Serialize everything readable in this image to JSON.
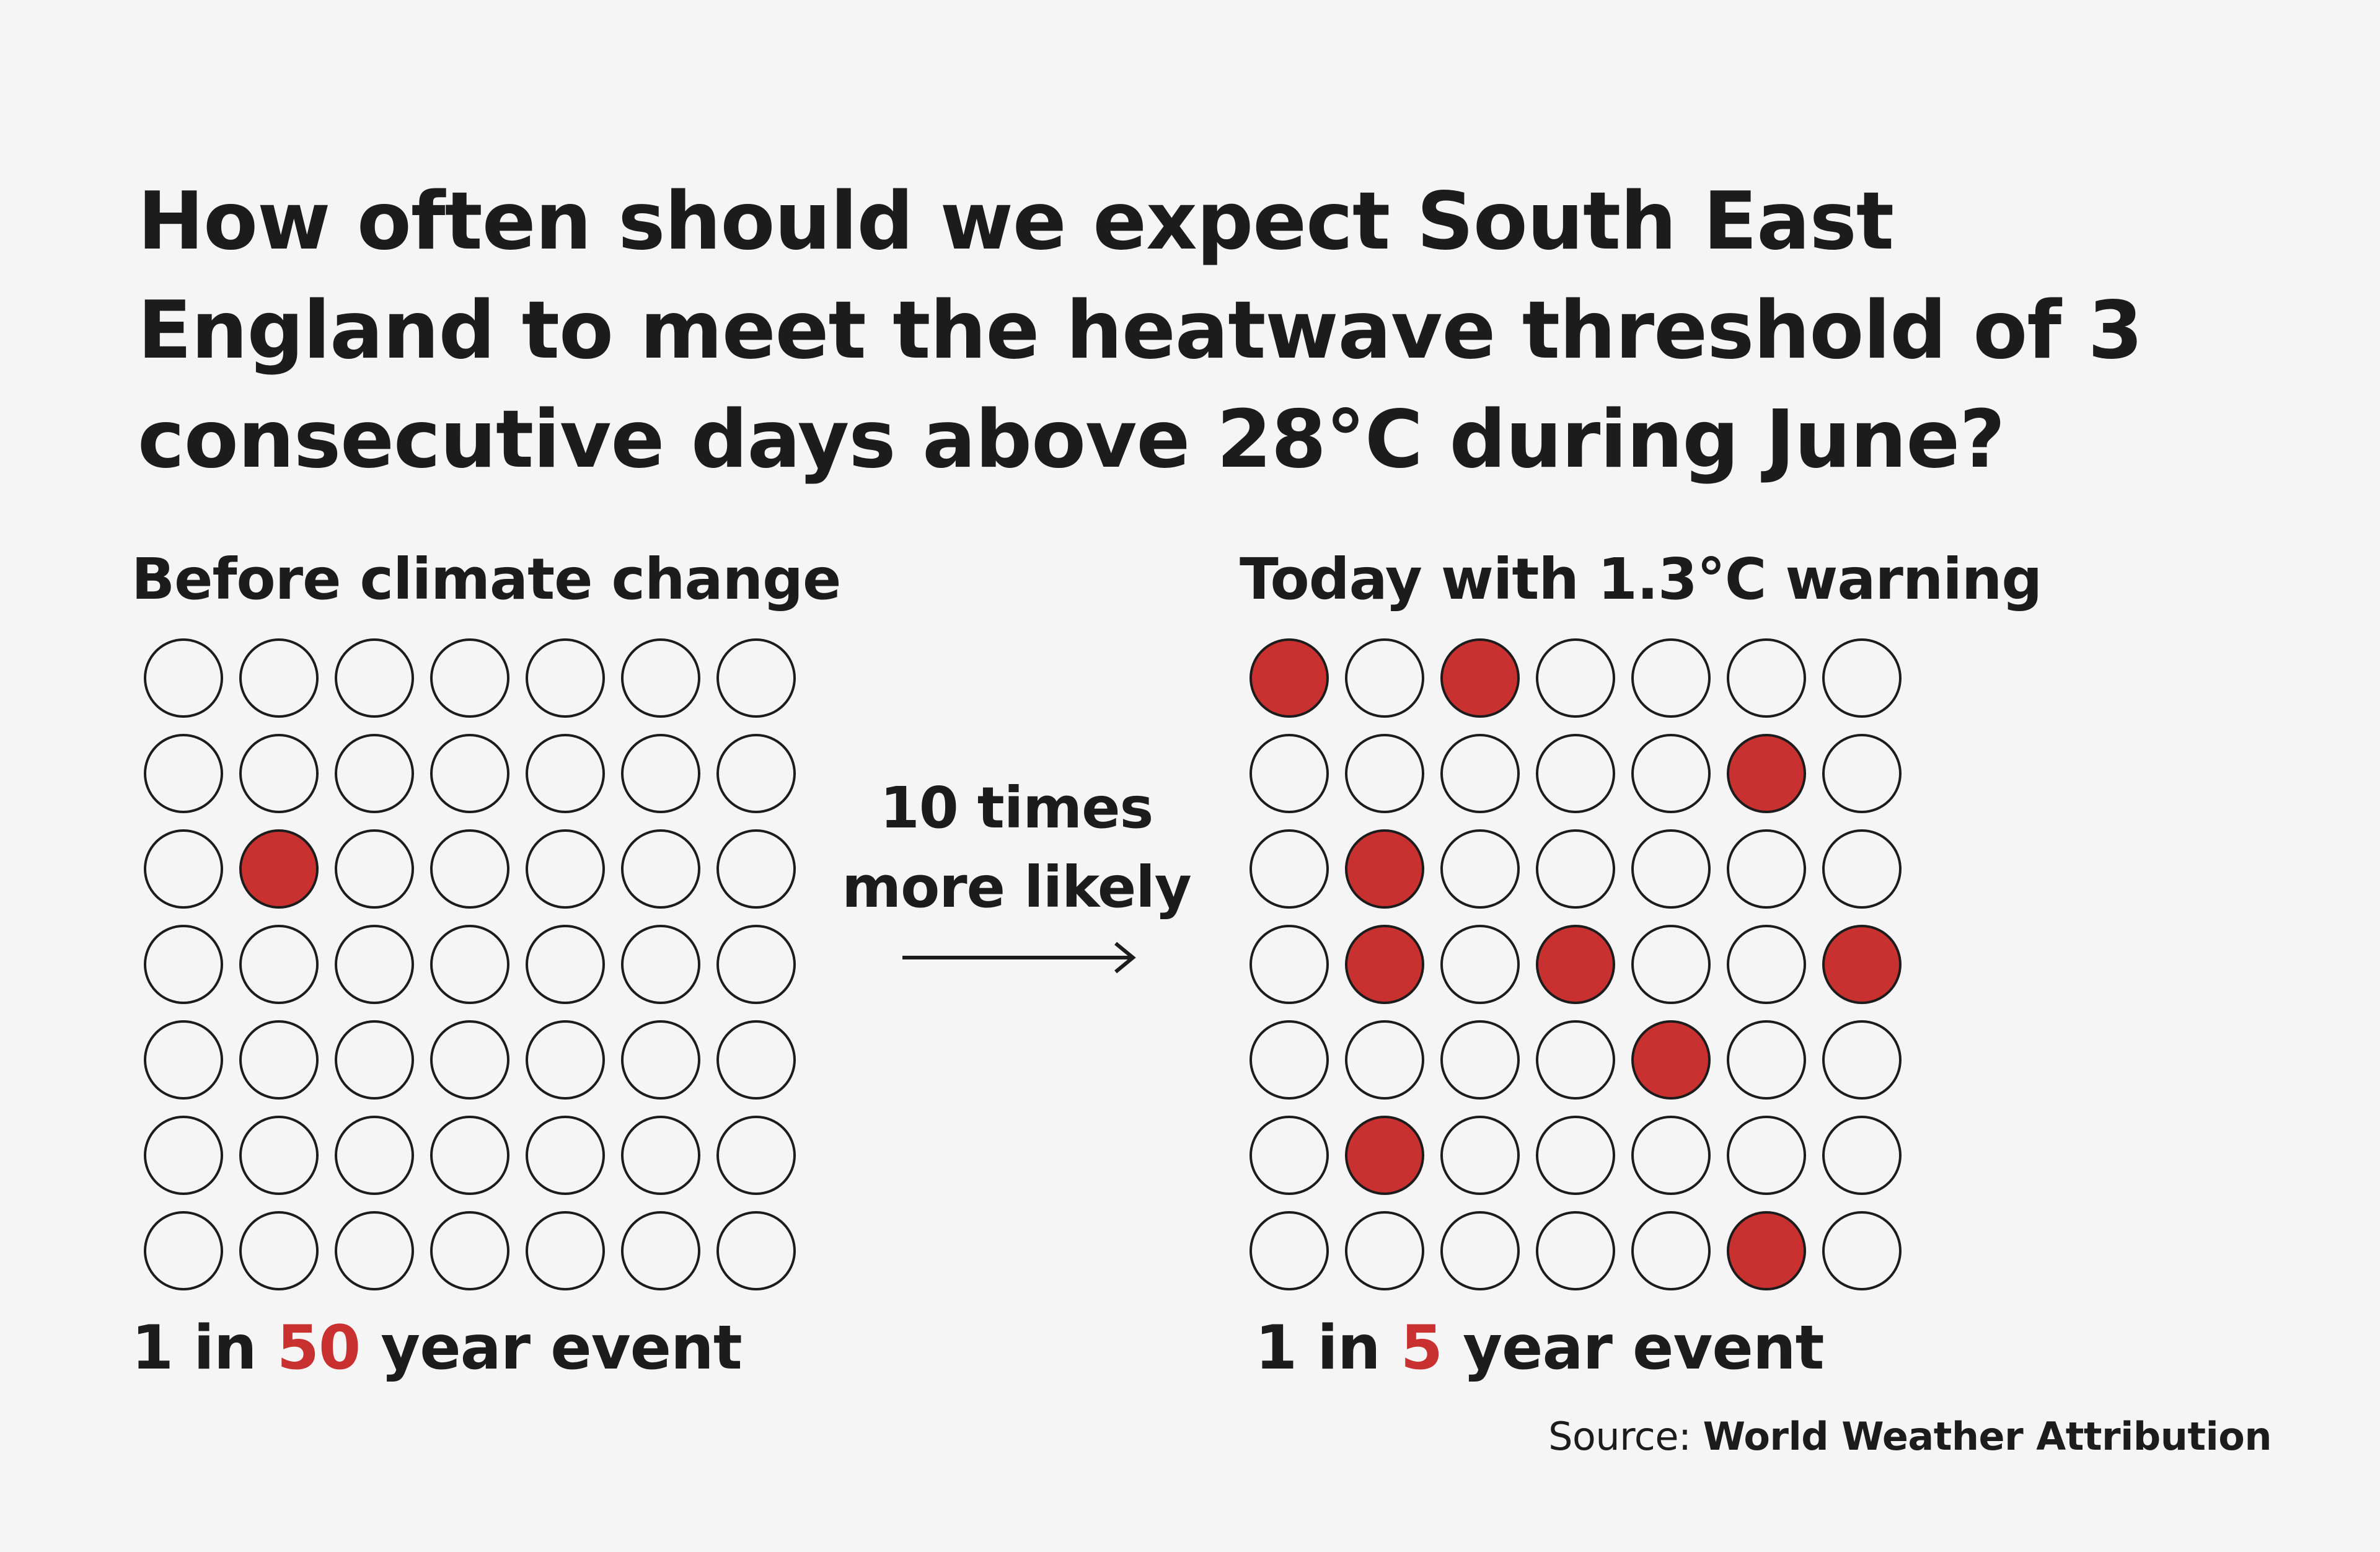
{
  "title": "How often should we expect South East England to meet the heatwave threshold of 3 consecutive days above 28°C during June?",
  "comparison_text_line1": "10 times",
  "comparison_text_line2": "more likely",
  "source_label": "Source:",
  "source_name": "World Weather Attribution",
  "colors": {
    "highlight": "#c8312f",
    "circle_stroke": "#1c1c1c",
    "background": "#f5f5f5"
  },
  "chart_data": [
    {
      "type": "waffle",
      "title": "Before climate change",
      "rows": 7,
      "cols": 7,
      "total": 49,
      "filled": [
        [
          2,
          1
        ]
      ],
      "result_prefix": "1 in ",
      "result_value": "50",
      "result_suffix": " year event"
    },
    {
      "type": "waffle",
      "title": "Today with 1.3°C warning",
      "rows": 7,
      "cols": 7,
      "total": 49,
      "filled": [
        [
          0,
          0
        ],
        [
          0,
          2
        ],
        [
          1,
          5
        ],
        [
          2,
          1
        ],
        [
          3,
          1
        ],
        [
          3,
          3
        ],
        [
          3,
          6
        ],
        [
          4,
          4
        ],
        [
          5,
          1
        ],
        [
          6,
          5
        ]
      ],
      "result_prefix": "1 in ",
      "result_value": "5",
      "result_suffix": " year event"
    }
  ]
}
